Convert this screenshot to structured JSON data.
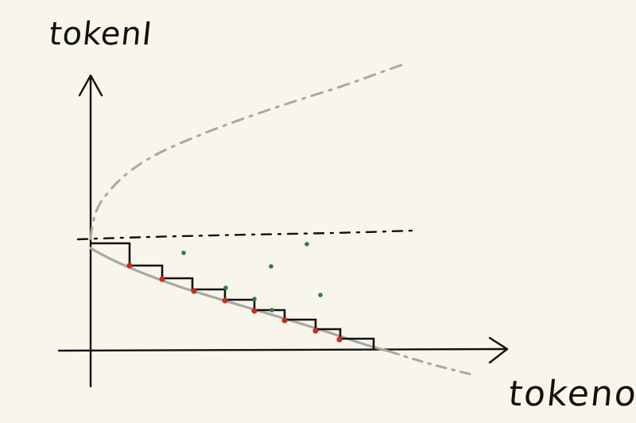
{
  "labels": {
    "y_axis": "tokenI",
    "x_axis": "tokeno"
  },
  "colors": {
    "background": "#f8f6ea",
    "ink": "#111111",
    "gray_curve": "#a8a8a8",
    "red_point": "#cc2a1e",
    "green_point": "#2f7a4f"
  }
}
